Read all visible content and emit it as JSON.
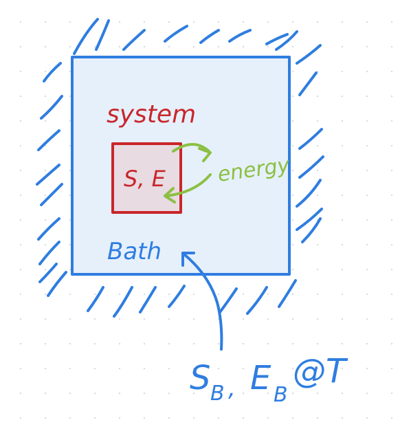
{
  "labels": {
    "system": "system",
    "system_state": "S, E",
    "energy": "energy",
    "bath": "Bath",
    "bath_state": "S",
    "bath_state_b1": "B",
    "bath_state_comma": ",",
    "bath_energy": "E",
    "bath_energy_b": "B",
    "bath_temp": "@T"
  },
  "colors": {
    "bath_blue": "#2f7de0",
    "bath_fill": "#e6f0fb",
    "system_red": "#c8262a",
    "system_fill": "#e8dbe2",
    "energy_green": "#8cc044",
    "dot_grid": "#d6d9de"
  }
}
